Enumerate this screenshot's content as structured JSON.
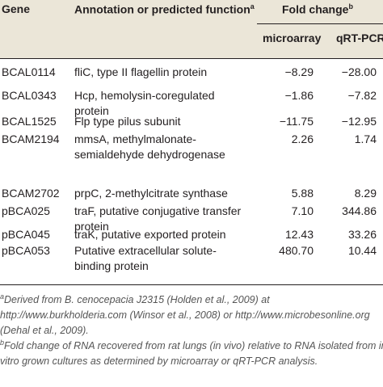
{
  "table": {
    "header": {
      "gene": "Gene",
      "annotation": "Annotation or predicted function",
      "annotation_note": "a",
      "fold_change": "Fold change",
      "fold_change_note": "b",
      "microarray": "microarray",
      "qrtpcr": "qRT-PCR"
    },
    "rows": [
      [
        "BCAL0114",
        "fliC, type II flagellin protein",
        "−8.29",
        "−28.00"
      ],
      [
        "BCAL0343",
        "Hcp, hemolysin-coregulated protein",
        "−1.86",
        "−7.82"
      ],
      [
        "BCAL1525",
        "Flp type pilus subunit",
        "−11.75",
        "−12.95"
      ],
      [
        "BCAM2194",
        "mmsA, methylmalonate-semialdehyde dehydrogenase",
        "2.26",
        "1.74"
      ],
      [
        "BCAM2702",
        "prpC, 2-methylcitrate synthase",
        "5.88",
        "8.29"
      ],
      [
        "pBCA025",
        "traF, putative conjugative transfer protein",
        "7.10",
        "344.86"
      ],
      [
        "pBCA045",
        "traK, putative exported protein",
        "12.43",
        "33.26"
      ],
      [
        "pBCA053",
        "Putative extracellular solute-binding protein",
        "480.70",
        "10.44"
      ]
    ],
    "footnotes": [
      {
        "marker": "a",
        "text": "Derived from B. cenocepacia J2315 (Holden et al., 2009) at http://www.burkholderia.com (Winsor et al., 2008) or http://www.microbesonline.org (Dehal et al., 2009)."
      },
      {
        "marker": "b",
        "text": "Fold change of RNA recovered from rat lungs (in vivo) relative to RNA isolated from in vitro grown cultures as determined by microarray or qRT-PCR analysis."
      }
    ]
  }
}
